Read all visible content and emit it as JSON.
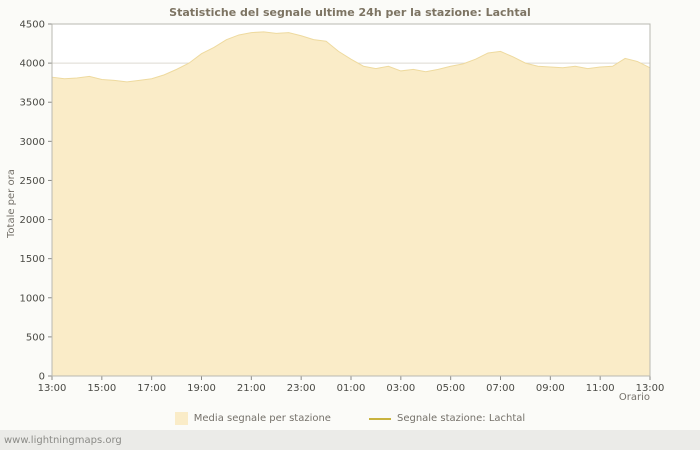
{
  "watermark": "www.lightningmaps.org",
  "chart_data": {
    "type": "area",
    "title": "Statistiche del segnale ultime 24h per la stazione: Lachtal",
    "xlabel": "Orario",
    "ylabel": "Totale per ora",
    "ylim": [
      0,
      4500
    ],
    "ytick_step": 500,
    "xtick_step": 2,
    "x_tick_labels": [
      "13:00",
      "15:00",
      "17:00",
      "19:00",
      "21:00",
      "23:00",
      "01:00",
      "03:00",
      "05:00",
      "07:00",
      "09:00",
      "11:00",
      "13:00"
    ],
    "x": [
      0,
      0.5,
      1,
      1.5,
      2,
      2.5,
      3,
      3.5,
      4,
      4.5,
      5,
      5.5,
      6,
      6.5,
      7,
      7.5,
      8,
      8.5,
      9,
      9.5,
      10,
      10.5,
      11,
      11.5,
      12,
      12.5,
      13,
      13.5,
      14,
      14.5,
      15,
      15.5,
      16,
      16.5,
      17,
      17.5,
      18,
      18.5,
      19,
      19.5,
      20,
      20.5,
      21,
      21.5,
      22,
      22.5,
      23,
      23.5,
      24
    ],
    "series": [
      {
        "name": "Media segnale per stazione",
        "values": [
          3820,
          3800,
          3810,
          3830,
          3790,
          3780,
          3760,
          3780,
          3800,
          3850,
          3920,
          4000,
          4120,
          4200,
          4300,
          4360,
          4390,
          4400,
          4380,
          4390,
          4350,
          4300,
          4280,
          4150,
          4050,
          3960,
          3930,
          3960,
          3900,
          3920,
          3890,
          3920,
          3960,
          3990,
          4050,
          4130,
          4150,
          4080,
          4000,
          3960,
          3950,
          3940,
          3960,
          3930,
          3950,
          3960,
          4060,
          4020,
          3940
        ]
      },
      {
        "name": "Segnale stazione: Lachtal",
        "values": []
      }
    ],
    "legend_position": "bottom",
    "grid": "horizontal",
    "area_color": "#faecc8",
    "area_edge_color": "#eeda9f",
    "line_color": "#c9b33e"
  }
}
